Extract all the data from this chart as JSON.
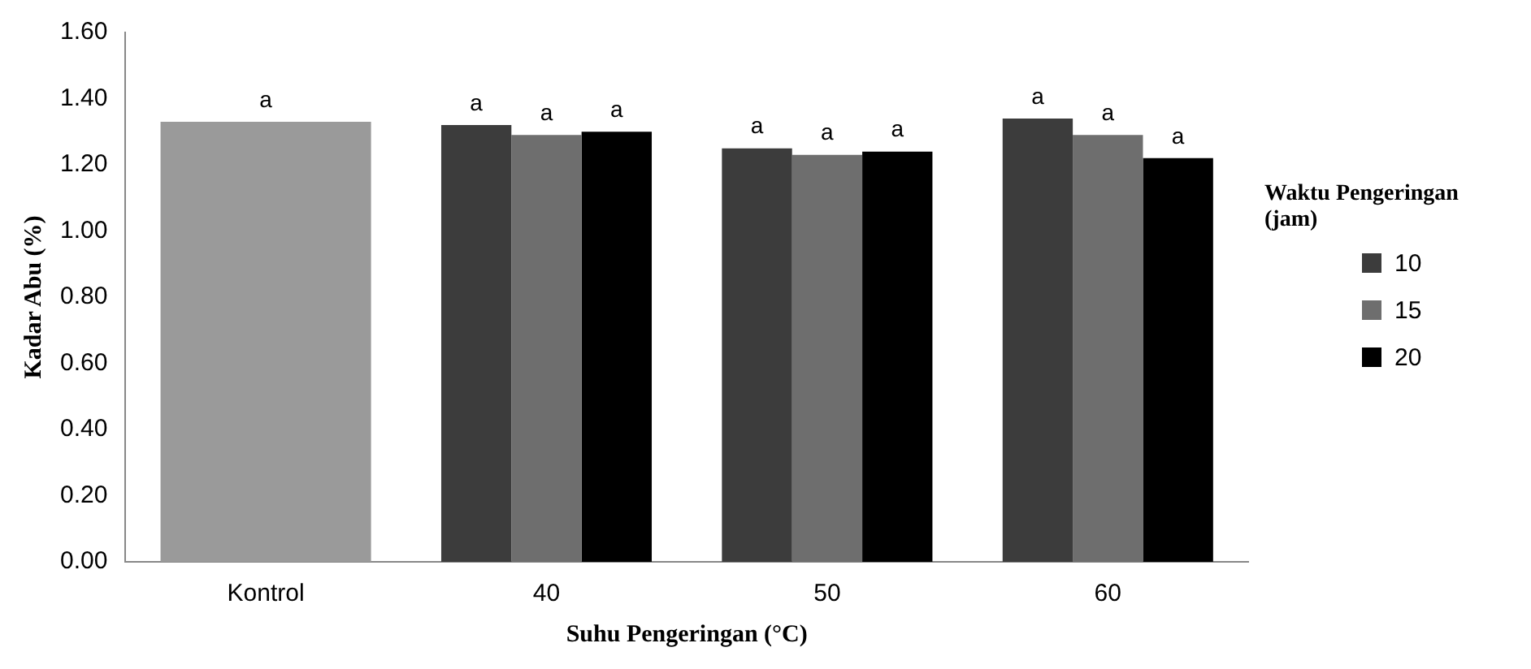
{
  "chart_data": {
    "type": "bar",
    "xlabel": "Suhu Pengeringan (°C)",
    "ylabel": "Kadar Abu (%)",
    "legend_title": "Waktu Pengeringan (jam)",
    "categories": [
      "Kontrol",
      "40",
      "50",
      "60"
    ],
    "series": [
      {
        "color": "#9a9a9a",
        "values": [
          1.33,
          null,
          null,
          null
        ],
        "value_labels": [
          "a",
          null,
          null,
          null
        ]
      },
      {
        "name": "10",
        "color": "#3c3c3c",
        "values": [
          null,
          1.32,
          1.25,
          1.34
        ],
        "value_labels": [
          null,
          "a",
          "a",
          "a"
        ]
      },
      {
        "name": "15",
        "color": "#6e6e6e",
        "values": [
          null,
          1.29,
          1.23,
          1.29
        ],
        "value_labels": [
          null,
          "a",
          "a",
          "a"
        ]
      },
      {
        "name": "20",
        "color": "#000000",
        "values": [
          null,
          1.3,
          1.24,
          1.22
        ],
        "value_labels": [
          null,
          "a",
          "a",
          "a"
        ]
      }
    ],
    "ylim": [
      0,
      1.6
    ],
    "yticks": [
      {
        "value": 0,
        "label": "0.00"
      },
      {
        "value": 0.2,
        "label": "0.20"
      },
      {
        "value": 0.4,
        "label": "0.40"
      },
      {
        "value": 0.6,
        "label": "0.60"
      },
      {
        "value": 0.8,
        "label": "0.80"
      },
      {
        "value": 1.0,
        "label": "1.00"
      },
      {
        "value": 1.2,
        "label": "1.20"
      },
      {
        "value": 1.4,
        "label": "1.40"
      },
      {
        "value": 1.6,
        "label": "1.60"
      }
    ],
    "grid": false,
    "legend": "right"
  }
}
